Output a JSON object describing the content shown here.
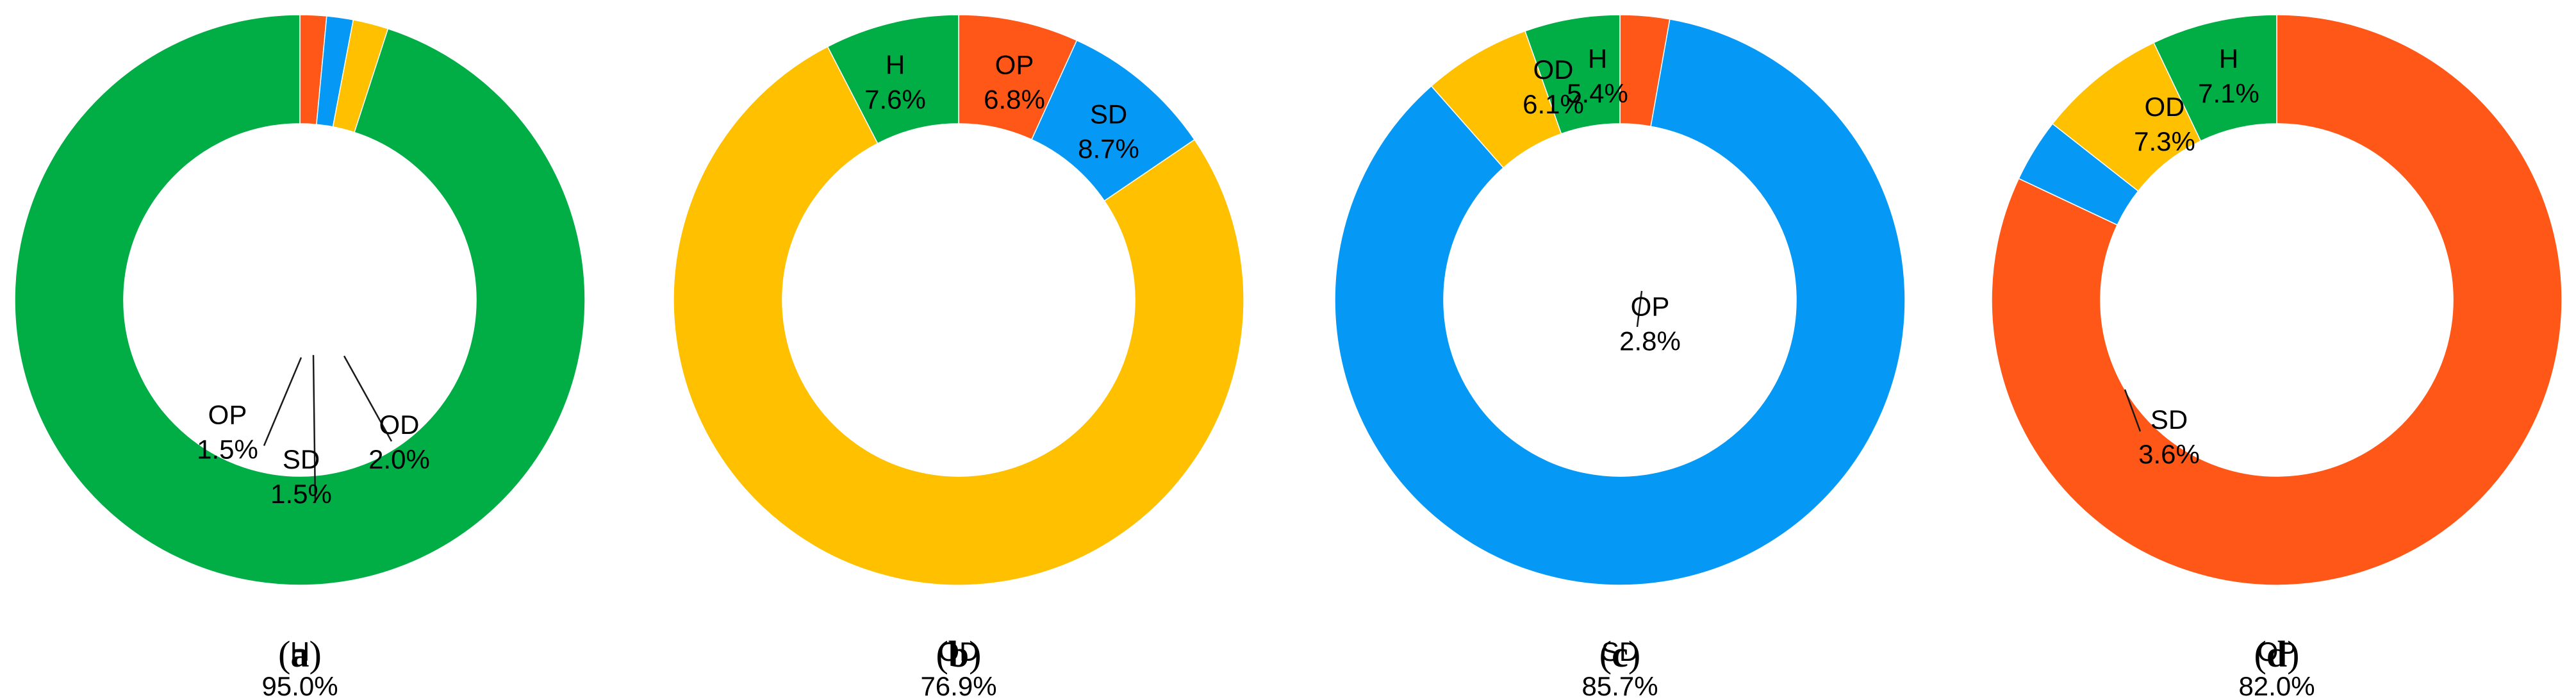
{
  "colors": {
    "OP": "#FF5718",
    "SD": "#0599F5",
    "OD": "#FFC000",
    "H": "#00AE45"
  },
  "chart_data": [
    {
      "type": "pie",
      "donut": true,
      "panel_label": "a",
      "slices": [
        {
          "name": "OP",
          "value": 1.5,
          "value_label": "1.5%"
        },
        {
          "name": "SD",
          "value": 1.5,
          "value_label": "1.5%"
        },
        {
          "name": "OD",
          "value": 2.0,
          "value_label": "2.0%"
        },
        {
          "name": "H",
          "value": 95.0,
          "value_label": "95.0%"
        }
      ]
    },
    {
      "type": "pie",
      "donut": true,
      "panel_label": "b",
      "slices": [
        {
          "name": "OP",
          "value": 6.8,
          "value_label": "6.8%"
        },
        {
          "name": "SD",
          "value": 8.7,
          "value_label": "8.7%"
        },
        {
          "name": "OD",
          "value": 76.9,
          "value_label": "76.9%"
        },
        {
          "name": "H",
          "value": 7.6,
          "value_label": "7.6%"
        }
      ]
    },
    {
      "type": "pie",
      "donut": true,
      "panel_label": "c",
      "slices": [
        {
          "name": "OP",
          "value": 2.8,
          "value_label": "2.8%"
        },
        {
          "name": "SD",
          "value": 85.7,
          "value_label": "85.7%"
        },
        {
          "name": "OD",
          "value": 6.1,
          "value_label": "6.1%"
        },
        {
          "name": "H",
          "value": 5.4,
          "value_label": "5.4%"
        }
      ]
    },
    {
      "type": "pie",
      "donut": true,
      "panel_label": "d",
      "slices": [
        {
          "name": "OP",
          "value": 82.0,
          "value_label": "82.0%"
        },
        {
          "name": "SD",
          "value": 3.6,
          "value_label": "3.6%"
        },
        {
          "name": "OD",
          "value": 7.3,
          "value_label": "7.3%"
        },
        {
          "name": "H",
          "value": 7.1,
          "value_label": "7.1%"
        }
      ]
    }
  ]
}
